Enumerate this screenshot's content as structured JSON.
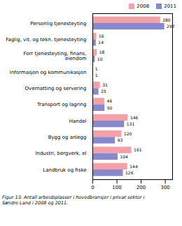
{
  "chart_data": {
    "type": "bar",
    "orientation": "horizontal",
    "categories": [
      "Personlig tjenesteyting",
      "Faglig, vit. og tekn. tjenesteyting",
      "Forr tjenesteyting, finans,\n eiendom",
      "Informasjon og kommunikasjon",
      "Overnatting og servering",
      "Transport og lagring",
      "Handel",
      "Bygg og anlegg",
      "Industri, bergverk, el",
      "Landbruk og fiske"
    ],
    "series": [
      {
        "name": "2008",
        "color": "#f4a0a8",
        "values": [
          280,
          16,
          18,
          1,
          31,
          49,
          146,
          120,
          161,
          144
        ]
      },
      {
        "name": "2011",
        "color": "#8888cc",
        "values": [
          297,
          14,
          10,
          1,
          25,
          50,
          131,
          93,
          104,
          126
        ]
      }
    ],
    "xlim": [
      0,
      330
    ],
    "xticks": [
      0,
      100,
      200,
      300
    ],
    "data_labels": true,
    "legend": "right",
    "grid": false,
    "caption": "Figur 13: Antall arbeidsplasser i hovedbransjer i privat sektor i\nSøndre Land i 2008 og 2011."
  }
}
